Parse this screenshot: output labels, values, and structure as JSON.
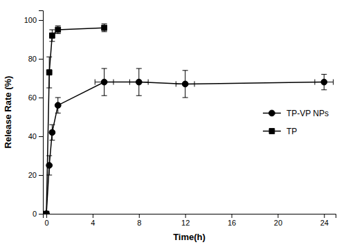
{
  "chart_data": {
    "type": "line",
    "xlabel": "Time(h)",
    "ylabel": "Release Rate (%)",
    "xlim": [
      -0.3,
      25
    ],
    "ylim": [
      0,
      105
    ],
    "xticks": [
      0,
      4,
      8,
      12,
      16,
      20,
      24
    ],
    "yticks": [
      0,
      20,
      40,
      60,
      80,
      100
    ],
    "grid": false,
    "legend": "right",
    "series": [
      {
        "name": "TP-VP NPs",
        "color": "#000000",
        "marker": "circle",
        "x": [
          0,
          0.25,
          0.5,
          1,
          5,
          8,
          12,
          24
        ],
        "values": [
          0,
          25,
          42,
          56,
          68,
          68,
          67,
          68
        ],
        "yerr": [
          0,
          5,
          4,
          4,
          7,
          7,
          7,
          4
        ],
        "xerr": [
          0,
          0,
          0,
          0,
          0.8,
          0.8,
          0.8,
          0.8
        ]
      },
      {
        "name": "TP",
        "color": "#000000",
        "marker": "square",
        "x": [
          0,
          0.25,
          0.5,
          1,
          5
        ],
        "values": [
          0,
          73,
          92,
          95,
          96
        ],
        "yerr": [
          0,
          8,
          3,
          2,
          2
        ]
      }
    ]
  }
}
